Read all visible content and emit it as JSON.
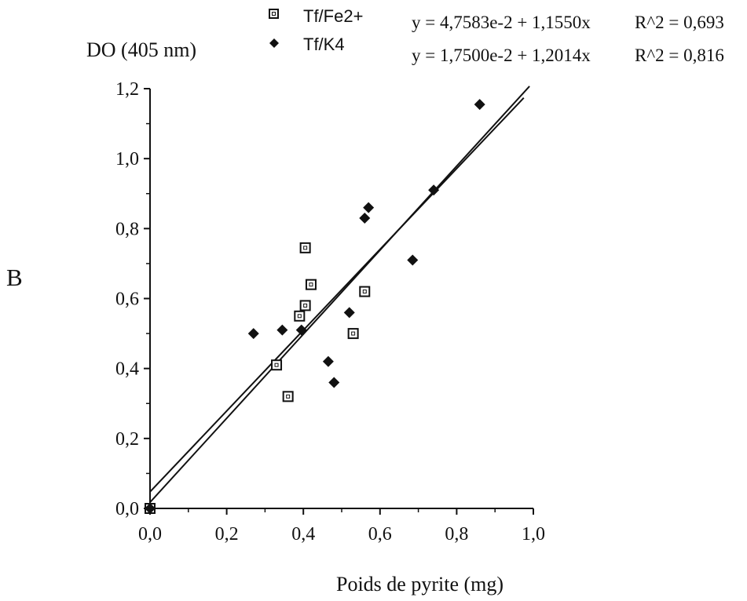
{
  "chart_data": {
    "type": "scatter",
    "panel_label": "B",
    "ylabel": "DO (405 nm)",
    "xlabel": "Poids de pyrite (mg)",
    "xlim": [
      0,
      1.0
    ],
    "ylim": [
      0,
      1.2
    ],
    "x_ticks": [
      "0,0",
      "0,2",
      "0,4",
      "0,6",
      "0,8",
      "1,0"
    ],
    "y_ticks": [
      "0,0",
      "0,2",
      "0,4",
      "0,6",
      "0,8",
      "1,0",
      "1,2"
    ],
    "grid": false,
    "legend_position": "top",
    "series": [
      {
        "name": "Tf/Fe2+",
        "marker": "open-square",
        "color": "#111111",
        "fit_equation": "y = 4,7583e-2 + 1,1550x",
        "r_squared": "R^2 = 0,693",
        "fit": {
          "intercept": 0.047583,
          "slope": 1.155
        },
        "points": [
          [
            0.0,
            0.0
          ],
          [
            0.33,
            0.41
          ],
          [
            0.36,
            0.32
          ],
          [
            0.39,
            0.55
          ],
          [
            0.405,
            0.58
          ],
          [
            0.405,
            0.745
          ],
          [
            0.42,
            0.64
          ],
          [
            0.53,
            0.5
          ],
          [
            0.56,
            0.62
          ]
        ]
      },
      {
        "name": "Tf/K4",
        "marker": "filled-diamond",
        "color": "#111111",
        "fit_equation": "y = 1,7500e-2 + 1,2014x",
        "r_squared": "R^2 = 0,816",
        "fit": {
          "intercept": 0.0175,
          "slope": 1.2014
        },
        "points": [
          [
            0.0,
            0.0
          ],
          [
            0.27,
            0.5
          ],
          [
            0.345,
            0.51
          ],
          [
            0.395,
            0.51
          ],
          [
            0.465,
            0.42
          ],
          [
            0.48,
            0.36
          ],
          [
            0.52,
            0.56
          ],
          [
            0.56,
            0.83
          ],
          [
            0.57,
            0.86
          ],
          [
            0.685,
            0.71
          ],
          [
            0.74,
            0.91
          ],
          [
            0.86,
            1.155
          ]
        ]
      }
    ]
  }
}
